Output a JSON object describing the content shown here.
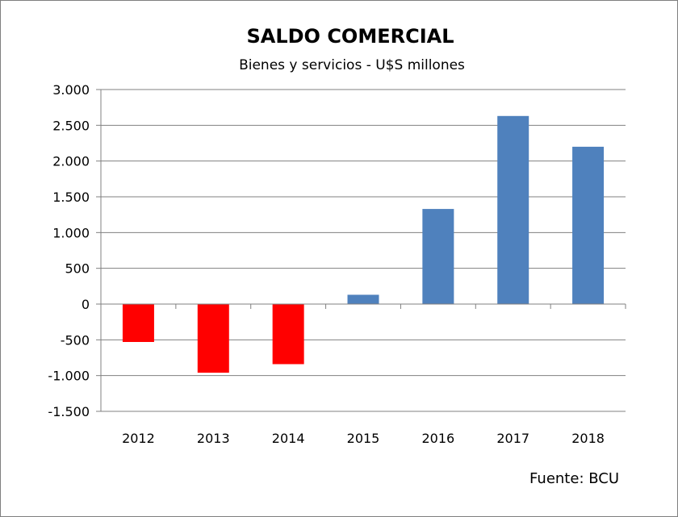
{
  "chart_data": {
    "type": "bar",
    "title": "SALDO COMERCIAL",
    "subtitle": "Bienes y servicios - U$S millones",
    "categories": [
      "2012",
      "2013",
      "2014",
      "2015",
      "2016",
      "2017",
      "2018"
    ],
    "series": [
      {
        "values": [
          -530,
          -960,
          -840,
          130,
          1330,
          2630,
          2200
        ]
      }
    ],
    "ylim": [
      -1500,
      3000
    ],
    "yticks": [
      3000,
      2500,
      2000,
      1500,
      1000,
      500,
      0,
      -500,
      -1000,
      -1500
    ],
    "ytick_labels": [
      "3.000",
      "2.500",
      "2.000",
      "1.500",
      "1.000",
      "500",
      "0",
      "-500",
      "-1.000",
      "-1.500"
    ],
    "grid": true,
    "colors": {
      "positive": "#4f81bd",
      "negative": "#ff0000"
    },
    "source": "Fuente: BCU"
  }
}
